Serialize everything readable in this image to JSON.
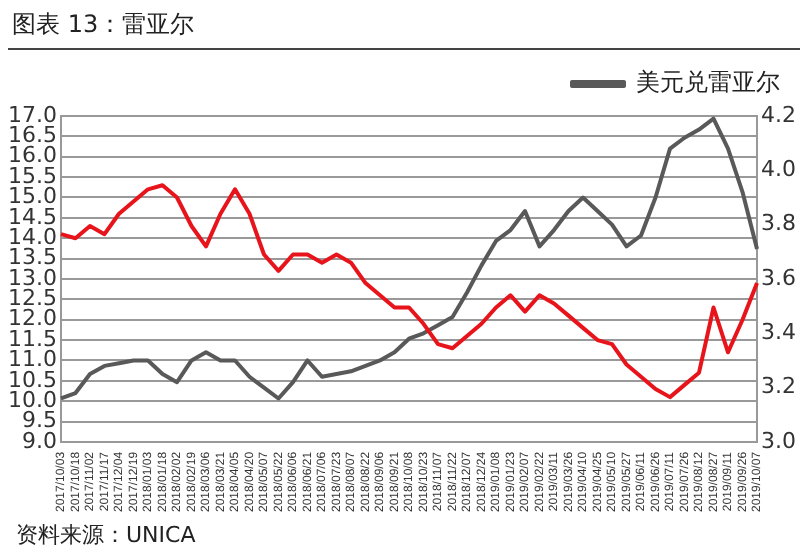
{
  "chart_data": {
    "type": "line",
    "title": "图表 13：雷亚尔",
    "annotations": [
      "资料来源：UNICA"
    ],
    "categories": [
      "2017/10/03",
      "2017/10/18",
      "2017/11/02",
      "2017/11/17",
      "2017/12/04",
      "2017/12/19",
      "2018/01/03",
      "2018/01/18",
      "2018/02/02",
      "2018/02/19",
      "2018/03/06",
      "2018/03/21",
      "2018/04/05",
      "2018/04/20",
      "2018/05/07",
      "2018/05/22",
      "2018/06/06",
      "2018/06/21",
      "2018/07/06",
      "2018/07/23",
      "2018/08/07",
      "2018/08/22",
      "2018/09/06",
      "2018/09/21",
      "2018/10/08",
      "2018/10/23",
      "2018/11/07",
      "2018/11/22",
      "2018/12/07",
      "2018/12/24",
      "2019/01/08",
      "2019/01/23",
      "2019/02/07",
      "2019/02/22",
      "2019/03/11",
      "2019/03/26",
      "2019/04/10",
      "2019/04/25",
      "2019/05/10",
      "2019/05/27",
      "2019/06/11",
      "2019/06/26",
      "2019/07/11",
      "2019/07/26",
      "2019/08/12",
      "2019/08/27",
      "2019/09/11",
      "2019/09/26",
      "2019/10/07"
    ],
    "series": [
      {
        "color": "#e8141b",
        "values": [
          14.1,
          14.0,
          14.3,
          14.1,
          14.6,
          14.9,
          15.2,
          15.3,
          15.0,
          14.3,
          13.8,
          14.6,
          15.2,
          14.6,
          13.6,
          13.2,
          13.6,
          13.6,
          13.4,
          13.6,
          13.4,
          12.9,
          12.6,
          12.3,
          12.3,
          11.9,
          11.4,
          11.3,
          11.6,
          11.9,
          12.3,
          12.6,
          12.2,
          12.6,
          12.4,
          12.1,
          11.8,
          11.5,
          11.4,
          10.9,
          10.6,
          10.3,
          10.1,
          10.4,
          10.7,
          12.3,
          11.2,
          12.0,
          12.9
        ]
      },
      {
        "name": "美元兑雷亚尔",
        "color": "#595959",
        "axis": "y2",
        "values": [
          3.16,
          3.18,
          3.25,
          3.28,
          3.29,
          3.3,
          3.3,
          3.25,
          3.22,
          3.3,
          3.33,
          3.3,
          3.3,
          3.24,
          3.2,
          3.16,
          3.22,
          3.3,
          3.24,
          3.25,
          3.26,
          3.28,
          3.3,
          3.33,
          3.38,
          3.4,
          3.43,
          3.46,
          3.55,
          3.65,
          3.74,
          3.78,
          3.85,
          3.72,
          3.78,
          3.85,
          3.9,
          3.85,
          3.8,
          3.72,
          3.76,
          3.9,
          4.08,
          4.12,
          4.15,
          4.19,
          4.08,
          3.92,
          3.71
        ]
      }
    ],
    "ylim": [
      9,
      17
    ],
    "yticks": [
      {
        "value": 9,
        "label": "9.0"
      },
      9.5,
      {
        "value": 10,
        "label": "10.0"
      },
      10.5,
      {
        "value": 11,
        "label": "11.0"
      },
      11.5,
      {
        "value": 12,
        "label": "12.0"
      },
      12.5,
      {
        "value": 13,
        "label": "13.0"
      },
      13.5,
      {
        "value": 14,
        "label": "14.0"
      },
      14.5,
      {
        "value": 15,
        "label": "15.0"
      },
      15.5,
      {
        "value": 16,
        "label": "16.0"
      },
      16.5,
      {
        "value": 17,
        "label": "17.0"
      }
    ],
    "y2lim": [
      3,
      4.2
    ],
    "y2ticks": [
      {
        "value": 3,
        "label": "3.0"
      },
      3.2,
      3.4,
      3.6,
      3.8,
      {
        "value": 4,
        "label": "4.0"
      },
      4.2
    ],
    "grid": "y",
    "legend": "top",
    "marker": "none",
    "line_style": "solid"
  }
}
